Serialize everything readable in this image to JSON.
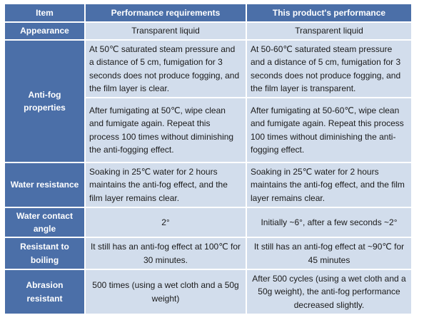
{
  "table": {
    "headers": [
      "Item",
      "Performance requirements",
      "This product's performance"
    ],
    "appearance": {
      "label": "Appearance",
      "requirement": "Transparent liquid",
      "performance": "Transparent liquid"
    },
    "antifog": {
      "label": "Anti-fog properties",
      "requirement_1": "At 50℃ saturated steam pressure and a distance of 5 cm, fumigation for 3 seconds does not produce fogging, and the film layer is clear.",
      "performance_1": "At 50-60℃ saturated steam pressure and a distance of 5 cm, fumigation for 3 seconds does not produce fogging, and the film layer is transparent.",
      "requirement_2": "After fumigating at 50℃, wipe clean and fumigate again. Repeat this process 100 times without diminishing the anti-fogging effect.",
      "performance_2": "After fumigating at 50-60℃, wipe clean and fumigate again. Repeat this process 100 times without diminishing the anti-fogging effect."
    },
    "water_resistance": {
      "label": "Water resistance",
      "requirement": "Soaking in 25℃ water for 2 hours maintains the anti-fog effect, and the film layer remains clear.",
      "performance": "Soaking in 25℃ water for 2 hours maintains the anti-fog effect, and the film layer remains clear."
    },
    "contact_angle": {
      "label": "Water contact angle",
      "requirement": "2°",
      "performance": "Initially ~6°, after a few seconds ~2°"
    },
    "boiling": {
      "label": "Resistant to boiling",
      "requirement": "It still has an anti-fog effect at 100℃ for 30 minutes.",
      "performance": "It still has an anti-fog effect at ~90℃ for 45 minutes"
    },
    "abrasion": {
      "label": "Abrasion resistant",
      "requirement": "500 times (using a wet cloth and a 50g weight)",
      "performance": "After 500 cycles (using a wet cloth and a 50g weight), the anti-fog performance decreased slightly."
    }
  }
}
